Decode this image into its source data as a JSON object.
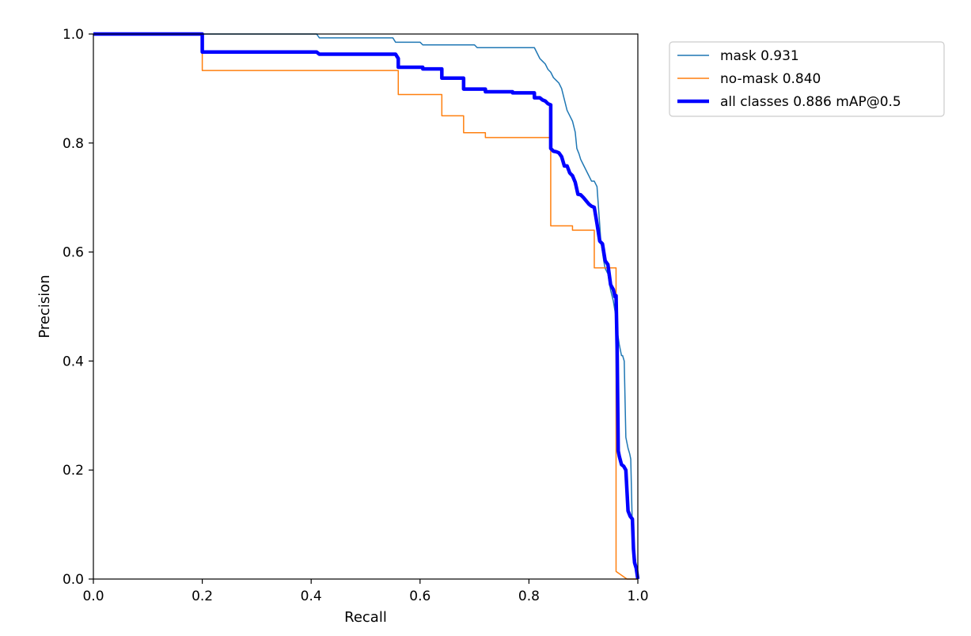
{
  "chart_data": {
    "type": "line",
    "title": "",
    "xlabel": "Recall",
    "ylabel": "Precision",
    "xlim": [
      0,
      1
    ],
    "ylim": [
      0,
      1
    ],
    "xticks": [
      "0.0",
      "0.2",
      "0.4",
      "0.6",
      "0.8",
      "1.0"
    ],
    "yticks": [
      "0.0",
      "0.2",
      "0.4",
      "0.6",
      "0.8",
      "1.0"
    ],
    "grid": false,
    "legend_position": "outside-top-right",
    "series": [
      {
        "name": "mask 0.931",
        "color": "#1f77b4",
        "line_width": "thin",
        "points": [
          [
            0,
            1.0
          ],
          [
            0.41,
            1.0
          ],
          [
            0.415,
            0.993
          ],
          [
            0.55,
            0.993
          ],
          [
            0.555,
            0.985
          ],
          [
            0.6,
            0.985
          ],
          [
            0.605,
            0.98
          ],
          [
            0.7,
            0.98
          ],
          [
            0.705,
            0.975
          ],
          [
            0.81,
            0.975
          ],
          [
            0.815,
            0.965
          ],
          [
            0.82,
            0.955
          ],
          [
            0.825,
            0.95
          ],
          [
            0.83,
            0.945
          ],
          [
            0.835,
            0.935
          ],
          [
            0.84,
            0.93
          ],
          [
            0.845,
            0.92
          ],
          [
            0.85,
            0.915
          ],
          [
            0.855,
            0.91
          ],
          [
            0.86,
            0.9
          ],
          [
            0.865,
            0.88
          ],
          [
            0.87,
            0.86
          ],
          [
            0.875,
            0.85
          ],
          [
            0.88,
            0.84
          ],
          [
            0.885,
            0.82
          ],
          [
            0.888,
            0.79
          ],
          [
            0.892,
            0.78
          ],
          [
            0.895,
            0.77
          ],
          [
            0.9,
            0.76
          ],
          [
            0.905,
            0.75
          ],
          [
            0.91,
            0.74
          ],
          [
            0.915,
            0.73
          ],
          [
            0.92,
            0.73
          ],
          [
            0.925,
            0.72
          ],
          [
            0.93,
            0.65
          ],
          [
            0.932,
            0.62
          ],
          [
            0.935,
            0.6
          ],
          [
            0.938,
            0.58
          ],
          [
            0.94,
            0.57
          ],
          [
            0.945,
            0.56
          ],
          [
            0.95,
            0.53
          ],
          [
            0.955,
            0.51
          ],
          [
            0.96,
            0.48
          ],
          [
            0.963,
            0.45
          ],
          [
            0.966,
            0.43
          ],
          [
            0.968,
            0.42
          ],
          [
            0.97,
            0.41
          ],
          [
            0.972,
            0.41
          ],
          [
            0.975,
            0.4
          ],
          [
            0.978,
            0.26
          ],
          [
            0.98,
            0.25
          ],
          [
            0.982,
            0.24
          ],
          [
            0.985,
            0.23
          ],
          [
            0.987,
            0.22
          ],
          [
            0.99,
            0.09
          ],
          [
            0.992,
            0.06
          ],
          [
            0.995,
            0.04
          ],
          [
            1.0,
            0.0
          ]
        ]
      },
      {
        "name": "no-mask 0.840",
        "color": "#ff7f0e",
        "line_width": "thin",
        "points": [
          [
            0,
            1.0
          ],
          [
            0.2,
            1.0
          ],
          [
            0.2,
            0.933
          ],
          [
            0.56,
            0.933
          ],
          [
            0.56,
            0.889
          ],
          [
            0.64,
            0.889
          ],
          [
            0.64,
            0.85
          ],
          [
            0.68,
            0.85
          ],
          [
            0.68,
            0.819
          ],
          [
            0.72,
            0.819
          ],
          [
            0.72,
            0.81
          ],
          [
            0.84,
            0.81
          ],
          [
            0.84,
            0.648
          ],
          [
            0.88,
            0.648
          ],
          [
            0.88,
            0.64
          ],
          [
            0.92,
            0.64
          ],
          [
            0.92,
            0.571
          ],
          [
            0.96,
            0.571
          ],
          [
            0.96,
            0.014
          ],
          [
            0.98,
            0.0
          ],
          [
            1.0,
            0.0
          ]
        ]
      },
      {
        "name": "all classes 0.886 mAP@0.5",
        "color": "#0000ff",
        "line_width": "thick",
        "points": [
          [
            0,
            1.0
          ],
          [
            0.2,
            1.0
          ],
          [
            0.2,
            0.967
          ],
          [
            0.41,
            0.967
          ],
          [
            0.415,
            0.963
          ],
          [
            0.555,
            0.963
          ],
          [
            0.56,
            0.955
          ],
          [
            0.56,
            0.939
          ],
          [
            0.605,
            0.939
          ],
          [
            0.605,
            0.936
          ],
          [
            0.64,
            0.936
          ],
          [
            0.64,
            0.919
          ],
          [
            0.68,
            0.919
          ],
          [
            0.68,
            0.899
          ],
          [
            0.72,
            0.899
          ],
          [
            0.72,
            0.894
          ],
          [
            0.77,
            0.894
          ],
          [
            0.77,
            0.892
          ],
          [
            0.81,
            0.892
          ],
          [
            0.81,
            0.883
          ],
          [
            0.82,
            0.883
          ],
          [
            0.825,
            0.879
          ],
          [
            0.83,
            0.877
          ],
          [
            0.835,
            0.872
          ],
          [
            0.84,
            0.87
          ],
          [
            0.84,
            0.79
          ],
          [
            0.845,
            0.785
          ],
          [
            0.85,
            0.784
          ],
          [
            0.855,
            0.782
          ],
          [
            0.86,
            0.775
          ],
          [
            0.865,
            0.758
          ],
          [
            0.87,
            0.758
          ],
          [
            0.875,
            0.745
          ],
          [
            0.88,
            0.74
          ],
          [
            0.885,
            0.728
          ],
          [
            0.89,
            0.706
          ],
          [
            0.895,
            0.705
          ],
          [
            0.9,
            0.7
          ],
          [
            0.905,
            0.694
          ],
          [
            0.91,
            0.688
          ],
          [
            0.915,
            0.684
          ],
          [
            0.92,
            0.682
          ],
          [
            0.925,
            0.652
          ],
          [
            0.93,
            0.62
          ],
          [
            0.935,
            0.615
          ],
          [
            0.94,
            0.584
          ],
          [
            0.945,
            0.577
          ],
          [
            0.95,
            0.54
          ],
          [
            0.955,
            0.531
          ],
          [
            0.958,
            0.518
          ],
          [
            0.96,
            0.52
          ],
          [
            0.962,
            0.42
          ],
          [
            0.964,
            0.235
          ],
          [
            0.966,
            0.225
          ],
          [
            0.97,
            0.21
          ],
          [
            0.974,
            0.207
          ],
          [
            0.978,
            0.2
          ],
          [
            0.982,
            0.125
          ],
          [
            0.986,
            0.115
          ],
          [
            0.99,
            0.11
          ],
          [
            0.992,
            0.055
          ],
          [
            0.994,
            0.03
          ],
          [
            0.997,
            0.02
          ],
          [
            1.0,
            0.0
          ]
        ]
      }
    ]
  }
}
